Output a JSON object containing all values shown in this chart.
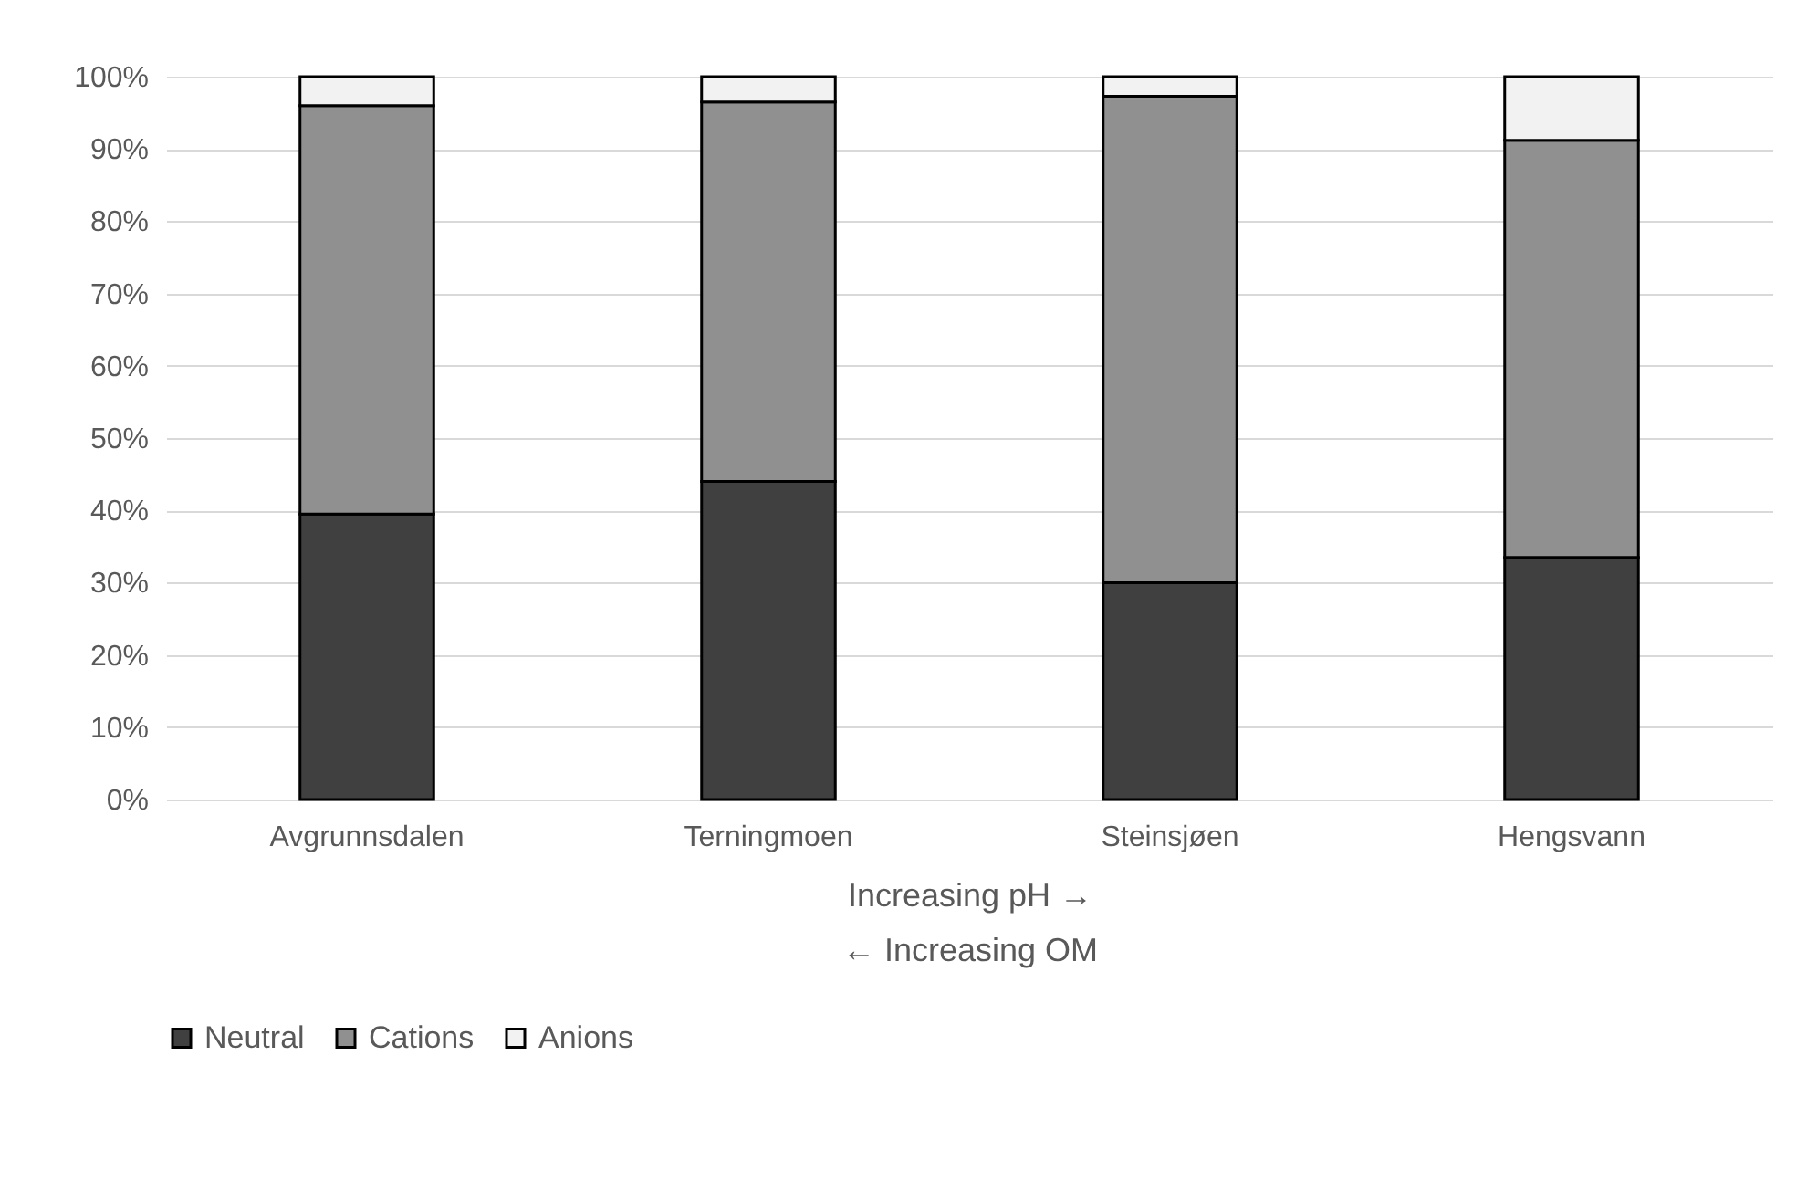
{
  "chart_data": {
    "type": "bar",
    "stacked": true,
    "xlabel": "Increasing pH →\n← Increasing OM",
    "categories": [
      "Avgrunnsdalen",
      "Terningmoen",
      "Steinsjøen",
      "Hengsvann"
    ],
    "series": [
      {
        "name": "Neutral",
        "color": "#404040",
        "values": [
          39.5,
          44,
          30,
          33.5
        ]
      },
      {
        "name": "Cations",
        "color": "#909090",
        "values": [
          56.5,
          52.5,
          67.3,
          57.7
        ]
      },
      {
        "name": "Anions",
        "color": "#f2f2f2",
        "values": [
          4,
          3.5,
          2.7,
          8.8
        ]
      }
    ],
    "ylim": [
      0,
      100
    ],
    "yticks": [
      {
        "value": 0,
        "label": "0%"
      },
      {
        "value": 10,
        "label": "10%"
      },
      {
        "value": 20,
        "label": "20%"
      },
      {
        "value": 30,
        "label": "30%"
      },
      {
        "value": 40,
        "label": "40%"
      },
      {
        "value": 50,
        "label": "50%"
      },
      {
        "value": 60,
        "label": "60%"
      },
      {
        "value": 70,
        "label": "70%"
      },
      {
        "value": 80,
        "label": "80%"
      },
      {
        "value": 90,
        "label": "90%"
      },
      {
        "value": 100,
        "label": "100%"
      }
    ],
    "grid": "y",
    "legend": "bottom"
  }
}
